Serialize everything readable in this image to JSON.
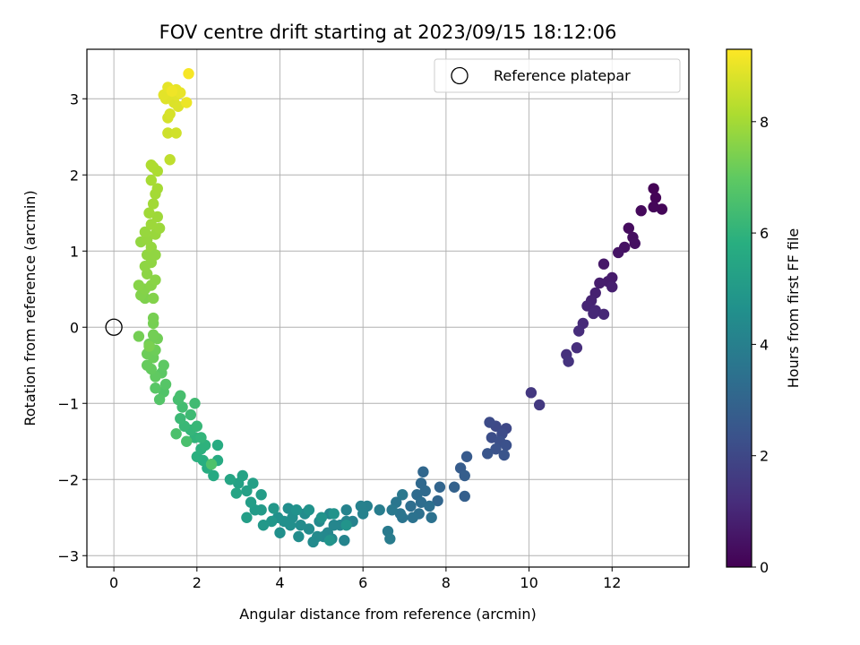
{
  "chart_data": {
    "type": "scatter",
    "title": "FOV centre drift starting at 2023/09/15 18:12:06",
    "xlabel": "Angular distance from reference (arcmin)",
    "ylabel": "Rotation from reference (arcmin)",
    "xlim": [
      -0.65,
      13.85
    ],
    "ylim": [
      -3.15,
      3.65
    ],
    "xticks": [
      0,
      2,
      4,
      6,
      8,
      10,
      12
    ],
    "yticks": [
      -3,
      -2,
      -1,
      0,
      1,
      2,
      3
    ],
    "grid": true,
    "legend": {
      "placement": "top-right",
      "entries": [
        "Reference platepar"
      ]
    },
    "reference_point": {
      "x": 0,
      "y": 0
    },
    "colorbar": {
      "label": "Hours from first FF file",
      "range": [
        0,
        9.3
      ],
      "ticks": [
        0,
        2,
        4,
        6,
        8
      ],
      "colormap": "viridis"
    },
    "points": [
      {
        "x": 13.0,
        "y": 1.82,
        "h": 0.05
      },
      {
        "x": 13.05,
        "y": 1.7,
        "h": 0.08
      },
      {
        "x": 13.2,
        "y": 1.55,
        "h": 0.12
      },
      {
        "x": 13.0,
        "y": 1.58,
        "h": 0.15
      },
      {
        "x": 12.7,
        "y": 1.53,
        "h": 0.2
      },
      {
        "x": 12.4,
        "y": 1.3,
        "h": 0.3
      },
      {
        "x": 12.5,
        "y": 1.18,
        "h": 0.35
      },
      {
        "x": 12.55,
        "y": 1.1,
        "h": 0.4
      },
      {
        "x": 12.3,
        "y": 1.05,
        "h": 0.45
      },
      {
        "x": 12.15,
        "y": 0.98,
        "h": 0.5
      },
      {
        "x": 11.8,
        "y": 0.83,
        "h": 0.6
      },
      {
        "x": 12.0,
        "y": 0.65,
        "h": 0.7
      },
      {
        "x": 11.9,
        "y": 0.6,
        "h": 0.72
      },
      {
        "x": 11.7,
        "y": 0.58,
        "h": 0.75
      },
      {
        "x": 12.0,
        "y": 0.53,
        "h": 0.8
      },
      {
        "x": 11.6,
        "y": 0.45,
        "h": 0.85
      },
      {
        "x": 11.5,
        "y": 0.35,
        "h": 0.9
      },
      {
        "x": 11.4,
        "y": 0.28,
        "h": 0.95
      },
      {
        "x": 11.6,
        "y": 0.22,
        "h": 1.0
      },
      {
        "x": 11.8,
        "y": 0.17,
        "h": 1.02
      },
      {
        "x": 11.55,
        "y": 0.18,
        "h": 1.05
      },
      {
        "x": 11.3,
        "y": 0.05,
        "h": 1.1
      },
      {
        "x": 11.2,
        "y": -0.05,
        "h": 1.15
      },
      {
        "x": 11.15,
        "y": -0.27,
        "h": 1.2
      },
      {
        "x": 10.9,
        "y": -0.36,
        "h": 1.3
      },
      {
        "x": 10.95,
        "y": -0.45,
        "h": 1.35
      },
      {
        "x": 10.05,
        "y": -0.86,
        "h": 1.5
      },
      {
        "x": 10.25,
        "y": -1.02,
        "h": 1.55
      },
      {
        "x": 9.45,
        "y": -1.33,
        "h": 2.0
      },
      {
        "x": 9.2,
        "y": -1.3,
        "h": 2.05
      },
      {
        "x": 9.05,
        "y": -1.25,
        "h": 2.1
      },
      {
        "x": 9.35,
        "y": -1.4,
        "h": 2.15
      },
      {
        "x": 9.1,
        "y": -1.45,
        "h": 2.2
      },
      {
        "x": 9.3,
        "y": -1.5,
        "h": 2.25
      },
      {
        "x": 9.45,
        "y": -1.55,
        "h": 2.3
      },
      {
        "x": 9.2,
        "y": -1.6,
        "h": 2.35
      },
      {
        "x": 9.4,
        "y": -1.68,
        "h": 2.4
      },
      {
        "x": 9.0,
        "y": -1.66,
        "h": 2.45
      },
      {
        "x": 8.5,
        "y": -1.7,
        "h": 2.6
      },
      {
        "x": 8.35,
        "y": -1.85,
        "h": 2.7
      },
      {
        "x": 8.45,
        "y": -1.95,
        "h": 2.75
      },
      {
        "x": 8.45,
        "y": -2.22,
        "h": 2.8
      },
      {
        "x": 8.2,
        "y": -2.1,
        "h": 2.9
      },
      {
        "x": 7.85,
        "y": -2.1,
        "h": 3.0
      },
      {
        "x": 7.8,
        "y": -2.28,
        "h": 3.05
      },
      {
        "x": 7.45,
        "y": -1.9,
        "h": 3.1
      },
      {
        "x": 7.4,
        "y": -2.05,
        "h": 3.15
      },
      {
        "x": 7.5,
        "y": -2.15,
        "h": 3.2
      },
      {
        "x": 7.3,
        "y": -2.2,
        "h": 3.25
      },
      {
        "x": 7.4,
        "y": -2.3,
        "h": 3.3
      },
      {
        "x": 7.15,
        "y": -2.35,
        "h": 3.35
      },
      {
        "x": 7.6,
        "y": -2.35,
        "h": 3.38
      },
      {
        "x": 7.35,
        "y": -2.45,
        "h": 3.4
      },
      {
        "x": 7.65,
        "y": -2.5,
        "h": 3.45
      },
      {
        "x": 7.2,
        "y": -2.5,
        "h": 3.5
      },
      {
        "x": 6.95,
        "y": -2.5,
        "h": 3.55
      },
      {
        "x": 6.9,
        "y": -2.45,
        "h": 3.6
      },
      {
        "x": 6.8,
        "y": -2.3,
        "h": 3.65
      },
      {
        "x": 6.95,
        "y": -2.2,
        "h": 3.7
      },
      {
        "x": 6.7,
        "y": -2.4,
        "h": 3.75
      },
      {
        "x": 6.6,
        "y": -2.68,
        "h": 3.8
      },
      {
        "x": 6.65,
        "y": -2.78,
        "h": 3.85
      },
      {
        "x": 6.4,
        "y": -2.4,
        "h": 3.9
      },
      {
        "x": 6.1,
        "y": -2.35,
        "h": 4.0
      },
      {
        "x": 5.95,
        "y": -2.35,
        "h": 4.05
      },
      {
        "x": 6.0,
        "y": -2.45,
        "h": 4.08
      },
      {
        "x": 5.75,
        "y": -2.55,
        "h": 4.1
      },
      {
        "x": 5.6,
        "y": -2.4,
        "h": 4.12
      },
      {
        "x": 5.6,
        "y": -2.55,
        "h": 4.15
      },
      {
        "x": 5.55,
        "y": -2.8,
        "h": 4.18
      },
      {
        "x": 5.45,
        "y": -2.6,
        "h": 4.2
      },
      {
        "x": 5.3,
        "y": -2.6,
        "h": 4.22
      },
      {
        "x": 5.2,
        "y": -2.45,
        "h": 4.25
      },
      {
        "x": 5.15,
        "y": -2.7,
        "h": 4.28
      },
      {
        "x": 5.25,
        "y": -2.78,
        "h": 4.3
      },
      {
        "x": 5.05,
        "y": -2.75,
        "h": 4.32
      },
      {
        "x": 4.95,
        "y": -2.55,
        "h": 4.35
      },
      {
        "x": 4.9,
        "y": -2.75,
        "h": 4.38
      },
      {
        "x": 4.8,
        "y": -2.82,
        "h": 4.4
      },
      {
        "x": 4.7,
        "y": -2.65,
        "h": 4.42
      },
      {
        "x": 4.6,
        "y": -2.45,
        "h": 4.45
      },
      {
        "x": 4.5,
        "y": -2.6,
        "h": 4.48
      },
      {
        "x": 4.45,
        "y": -2.75,
        "h": 4.5
      },
      {
        "x": 4.3,
        "y": -2.5,
        "h": 4.52
      },
      {
        "x": 4.2,
        "y": -2.38,
        "h": 4.55
      },
      {
        "x": 4.25,
        "y": -2.6,
        "h": 4.58
      },
      {
        "x": 4.1,
        "y": -2.55,
        "h": 4.6
      },
      {
        "x": 4.0,
        "y": -2.7,
        "h": 4.62
      },
      {
        "x": 3.95,
        "y": -2.5,
        "h": 4.65
      },
      {
        "x": 4.4,
        "y": -2.4,
        "h": 4.68
      },
      {
        "x": 4.7,
        "y": -2.4,
        "h": 4.7
      },
      {
        "x": 5.0,
        "y": -2.5,
        "h": 4.72
      },
      {
        "x": 5.3,
        "y": -2.45,
        "h": 4.74
      },
      {
        "x": 5.6,
        "y": -2.6,
        "h": 4.76
      },
      {
        "x": 5.2,
        "y": -2.8,
        "h": 4.78
      },
      {
        "x": 3.8,
        "y": -2.55,
        "h": 4.85
      },
      {
        "x": 3.85,
        "y": -2.38,
        "h": 4.9
      },
      {
        "x": 3.6,
        "y": -2.6,
        "h": 4.95
      },
      {
        "x": 3.55,
        "y": -2.4,
        "h": 5.0
      },
      {
        "x": 3.4,
        "y": -2.4,
        "h": 5.05
      },
      {
        "x": 3.55,
        "y": -2.2,
        "h": 5.1
      },
      {
        "x": 3.3,
        "y": -2.3,
        "h": 5.15
      },
      {
        "x": 3.2,
        "y": -2.5,
        "h": 5.18
      },
      {
        "x": 3.35,
        "y": -2.05,
        "h": 5.2
      },
      {
        "x": 3.2,
        "y": -2.15,
        "h": 5.25
      },
      {
        "x": 3.0,
        "y": -2.05,
        "h": 5.3
      },
      {
        "x": 3.1,
        "y": -1.95,
        "h": 5.35
      },
      {
        "x": 2.95,
        "y": -2.18,
        "h": 5.4
      },
      {
        "x": 2.8,
        "y": -2.0,
        "h": 5.45
      },
      {
        "x": 2.4,
        "y": -1.95,
        "h": 5.6
      },
      {
        "x": 2.5,
        "y": -1.75,
        "h": 5.65
      },
      {
        "x": 2.5,
        "y": -1.55,
        "h": 5.7
      },
      {
        "x": 2.25,
        "y": -1.85,
        "h": 5.75
      },
      {
        "x": 2.15,
        "y": -1.75,
        "h": 5.8
      },
      {
        "x": 2.0,
        "y": -1.7,
        "h": 5.85
      },
      {
        "x": 2.1,
        "y": -1.6,
        "h": 5.9
      },
      {
        "x": 2.2,
        "y": -1.55,
        "h": 5.95
      },
      {
        "x": 1.95,
        "y": -1.45,
        "h": 6.0
      },
      {
        "x": 2.1,
        "y": -1.45,
        "h": 6.05
      },
      {
        "x": 1.85,
        "y": -1.35,
        "h": 6.1
      },
      {
        "x": 2.0,
        "y": -1.3,
        "h": 6.15
      },
      {
        "x": 1.7,
        "y": -1.3,
        "h": 6.2
      },
      {
        "x": 1.6,
        "y": -1.2,
        "h": 6.25
      },
      {
        "x": 1.85,
        "y": -1.15,
        "h": 6.3
      },
      {
        "x": 1.95,
        "y": -1.0,
        "h": 6.35
      },
      {
        "x": 1.65,
        "y": -1.05,
        "h": 6.4
      },
      {
        "x": 1.55,
        "y": -0.95,
        "h": 6.45
      },
      {
        "x": 1.6,
        "y": -0.9,
        "h": 6.5
      },
      {
        "x": 1.75,
        "y": -1.5,
        "h": 6.55
      },
      {
        "x": 1.5,
        "y": -1.4,
        "h": 6.6
      },
      {
        "x": 2.35,
        "y": -1.8,
        "h": 6.65
      },
      {
        "x": 1.2,
        "y": -0.85,
        "h": 6.7
      },
      {
        "x": 1.1,
        "y": -0.95,
        "h": 6.75
      },
      {
        "x": 1.25,
        "y": -0.75,
        "h": 6.8
      },
      {
        "x": 1.0,
        "y": -0.8,
        "h": 6.85
      },
      {
        "x": 1.15,
        "y": -0.6,
        "h": 6.9
      },
      {
        "x": 1.2,
        "y": -0.5,
        "h": 6.95
      },
      {
        "x": 1.0,
        "y": -0.65,
        "h": 7.0
      },
      {
        "x": 0.9,
        "y": -0.55,
        "h": 7.05
      },
      {
        "x": 0.8,
        "y": -0.5,
        "h": 7.1
      },
      {
        "x": 0.95,
        "y": -0.4,
        "h": 7.15
      },
      {
        "x": 0.8,
        "y": -0.35,
        "h": 7.18
      },
      {
        "x": 1.0,
        "y": -0.3,
        "h": 7.2
      },
      {
        "x": 0.85,
        "y": -0.22,
        "h": 7.22
      },
      {
        "x": 1.05,
        "y": -0.15,
        "h": 7.25
      },
      {
        "x": 0.95,
        "y": -0.1,
        "h": 7.28
      },
      {
        "x": 0.6,
        "y": -0.12,
        "h": 7.3
      },
      {
        "x": 0.95,
        "y": 0.05,
        "h": 7.32
      },
      {
        "x": 0.95,
        "y": 0.12,
        "h": 7.35
      },
      {
        "x": 0.85,
        "y": -0.25,
        "h": 7.38
      },
      {
        "x": 0.75,
        "y": 0.38,
        "h": 7.45
      },
      {
        "x": 0.65,
        "y": 0.42,
        "h": 7.5
      },
      {
        "x": 0.95,
        "y": 0.38,
        "h": 7.52
      },
      {
        "x": 0.75,
        "y": 0.5,
        "h": 7.55
      },
      {
        "x": 0.6,
        "y": 0.55,
        "h": 7.58
      },
      {
        "x": 0.9,
        "y": 0.55,
        "h": 7.6
      },
      {
        "x": 1.0,
        "y": 0.62,
        "h": 7.62
      },
      {
        "x": 0.8,
        "y": 0.7,
        "h": 7.65
      },
      {
        "x": 0.75,
        "y": 0.8,
        "h": 7.68
      },
      {
        "x": 0.9,
        "y": 0.85,
        "h": 7.7
      },
      {
        "x": 0.8,
        "y": 0.95,
        "h": 7.72
      },
      {
        "x": 0.65,
        "y": 1.12,
        "h": 7.75
      },
      {
        "x": 0.9,
        "y": 1.05,
        "h": 7.78
      },
      {
        "x": 0.8,
        "y": 1.15,
        "h": 7.8
      },
      {
        "x": 0.75,
        "y": 1.25,
        "h": 7.82
      },
      {
        "x": 1.0,
        "y": 1.22,
        "h": 7.85
      },
      {
        "x": 1.1,
        "y": 1.3,
        "h": 7.88
      },
      {
        "x": 0.9,
        "y": 1.35,
        "h": 7.9
      },
      {
        "x": 1.05,
        "y": 1.45,
        "h": 7.92
      },
      {
        "x": 0.85,
        "y": 1.5,
        "h": 7.95
      },
      {
        "x": 0.95,
        "y": 1.62,
        "h": 7.98
      },
      {
        "x": 1.0,
        "y": 1.75,
        "h": 8.0
      },
      {
        "x": 1.05,
        "y": 1.82,
        "h": 8.02
      },
      {
        "x": 0.9,
        "y": 1.93,
        "h": 8.05
      },
      {
        "x": 0.95,
        "y": 2.1,
        "h": 8.1
      },
      {
        "x": 1.05,
        "y": 2.05,
        "h": 8.12
      },
      {
        "x": 0.9,
        "y": 2.13,
        "h": 8.15
      },
      {
        "x": 1.0,
        "y": 0.95,
        "h": 7.72
      },
      {
        "x": 1.35,
        "y": 2.2,
        "h": 8.4
      },
      {
        "x": 1.3,
        "y": 2.55,
        "h": 8.6
      },
      {
        "x": 1.5,
        "y": 2.55,
        "h": 8.65
      },
      {
        "x": 1.3,
        "y": 2.75,
        "h": 8.7
      },
      {
        "x": 1.35,
        "y": 2.8,
        "h": 8.75
      },
      {
        "x": 1.45,
        "y": 2.95,
        "h": 8.8
      },
      {
        "x": 1.55,
        "y": 2.9,
        "h": 8.82
      },
      {
        "x": 1.25,
        "y": 3.0,
        "h": 8.85
      },
      {
        "x": 1.35,
        "y": 3.05,
        "h": 8.88
      },
      {
        "x": 1.5,
        "y": 3.05,
        "h": 8.9
      },
      {
        "x": 1.2,
        "y": 3.05,
        "h": 8.92
      },
      {
        "x": 1.3,
        "y": 3.15,
        "h": 8.95
      },
      {
        "x": 1.5,
        "y": 3.12,
        "h": 8.98
      },
      {
        "x": 1.6,
        "y": 3.08,
        "h": 9.0
      },
      {
        "x": 1.75,
        "y": 2.95,
        "h": 9.05
      },
      {
        "x": 1.8,
        "y": 3.33,
        "h": 9.2
      },
      {
        "x": 1.4,
        "y": 3.1,
        "h": 9.1
      }
    ]
  }
}
